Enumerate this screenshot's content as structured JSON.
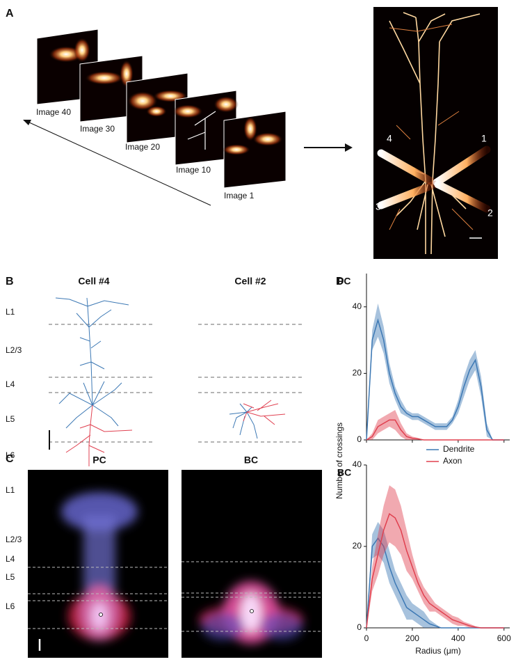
{
  "panel_labels": [
    "A",
    "B",
    "C",
    "D"
  ],
  "panel_a": {
    "images": [
      "Image 40",
      "Image 30",
      "Image 20",
      "Image 10",
      "Image 1"
    ],
    "pipettes": [
      "4",
      "1",
      "3",
      "2"
    ]
  },
  "panel_b": {
    "cells": [
      "Cell #4",
      "Cell #2"
    ],
    "layers": [
      "L1",
      "L2/3",
      "L4",
      "L5",
      "L6"
    ]
  },
  "panel_c": {
    "titles": [
      "PC",
      "BC"
    ],
    "layers": [
      "L1",
      "L2/3",
      "L4",
      "L5",
      "L6"
    ]
  },
  "chart_data": [
    {
      "type": "line",
      "title": "PC",
      "ylabel": "Number of crossings",
      "x": [
        0,
        25,
        50,
        75,
        100,
        125,
        150,
        175,
        200,
        225,
        250,
        275,
        300,
        325,
        350,
        375,
        400,
        425,
        450,
        475,
        500,
        525,
        550,
        575,
        600
      ],
      "series": [
        {
          "name": "Dendrite",
          "color": "#3c78b4",
          "values": [
            0,
            30,
            36,
            30,
            20,
            14,
            10,
            8,
            7,
            7,
            6,
            5,
            4,
            4,
            4,
            6,
            10,
            16,
            21,
            24,
            16,
            3,
            0,
            0,
            0
          ],
          "error": [
            0,
            3,
            5,
            4,
            3,
            2,
            2,
            1,
            1,
            1,
            1,
            1,
            1,
            1,
            1,
            1,
            2,
            3,
            3,
            3,
            3,
            2,
            0,
            0,
            0
          ]
        },
        {
          "name": "Axon",
          "color": "#e0404f",
          "values": [
            0,
            1,
            4,
            5,
            6,
            6,
            3,
            1,
            0.5,
            0.3,
            0,
            0,
            0,
            0,
            0,
            0,
            0,
            0,
            0,
            0,
            0,
            0,
            0,
            0,
            0
          ],
          "error": [
            0,
            1,
            2,
            2,
            2,
            3,
            2,
            1,
            0.5,
            0.3,
            0,
            0,
            0,
            0,
            0,
            0,
            0,
            0,
            0,
            0,
            0,
            0,
            0,
            0,
            0
          ]
        }
      ],
      "xlim": [
        0,
        625
      ],
      "xticks": [
        0,
        200,
        400,
        600
      ],
      "xtick_labels": false,
      "ylim": [
        0,
        50
      ],
      "yticks": [
        0,
        20,
        40
      ]
    },
    {
      "type": "line",
      "title": "BC",
      "xlabel": "Radius (μm)",
      "legend": "upper right",
      "x": [
        0,
        25,
        50,
        75,
        100,
        125,
        150,
        175,
        200,
        225,
        250,
        275,
        300,
        325,
        350,
        375,
        400,
        425,
        450,
        475,
        500,
        525,
        550,
        575,
        600
      ],
      "series": [
        {
          "name": "Dendrite",
          "color": "#3c78b4",
          "values": [
            0,
            20,
            22,
            20,
            15,
            11,
            8,
            5,
            4,
            3,
            2,
            1,
            0.5,
            0,
            0,
            0,
            0,
            0,
            0,
            0,
            0,
            0,
            0,
            0,
            0
          ],
          "error": [
            0,
            3,
            4,
            4,
            4,
            3,
            3,
            3,
            2,
            2,
            2,
            1,
            0.5,
            0,
            0,
            0,
            0,
            0,
            0,
            0,
            0,
            0,
            0,
            0,
            0
          ]
        },
        {
          "name": "Axon",
          "color": "#e0404f",
          "values": [
            0,
            12,
            18,
            24,
            28,
            27,
            24,
            19,
            15,
            11,
            8,
            6,
            5,
            4,
            3,
            2,
            1.5,
            1,
            0.5,
            0.2,
            0,
            0,
            0,
            0,
            0
          ],
          "error": [
            0,
            3,
            5,
            6,
            7,
            7,
            6,
            5,
            3,
            2,
            2,
            2,
            1,
            1,
            1,
            1,
            1,
            0.5,
            0.5,
            0.2,
            0,
            0,
            0,
            0,
            0
          ]
        }
      ],
      "xlim": [
        0,
        625
      ],
      "xticks": [
        0,
        200,
        400,
        600
      ],
      "ylim": [
        0,
        40
      ],
      "yticks": [
        0,
        20,
        40
      ]
    }
  ]
}
